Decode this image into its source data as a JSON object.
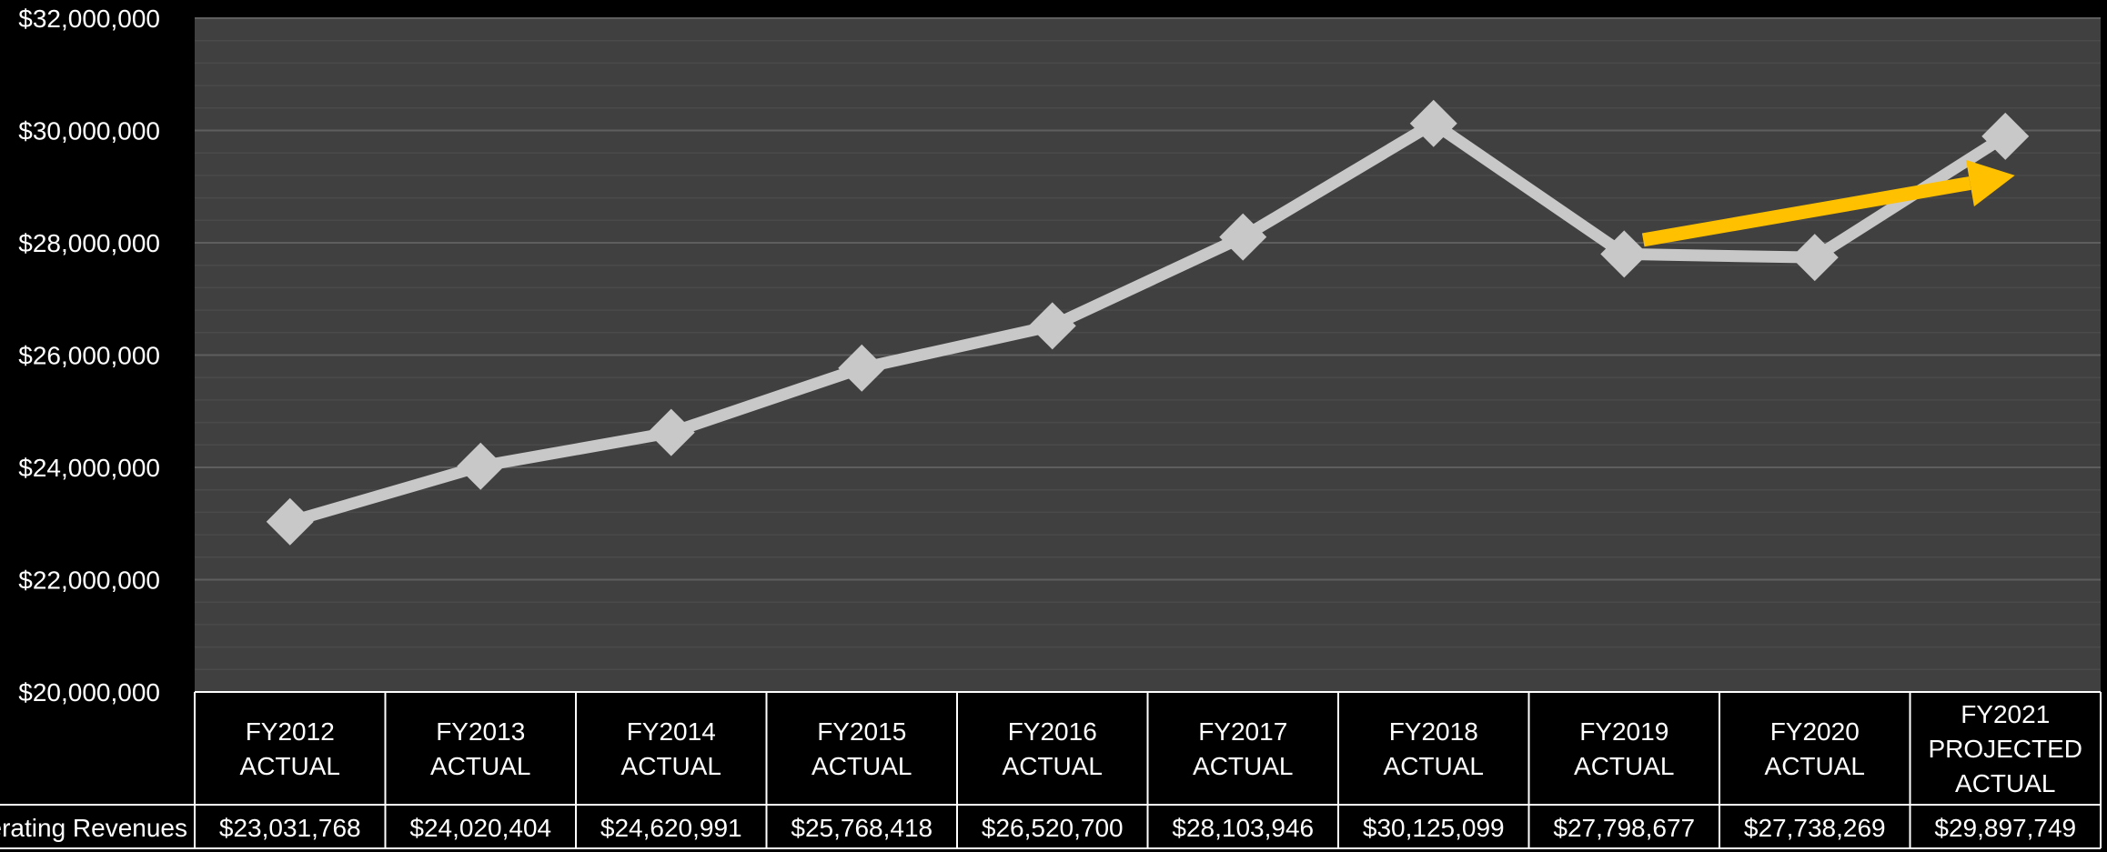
{
  "chart_data": {
    "type": "line",
    "categories": [
      "FY2012 ACTUAL",
      "FY2013 ACTUAL",
      "FY2014 ACTUAL",
      "FY2015 ACTUAL",
      "FY2016 ACTUAL",
      "FY2017 ACTUAL",
      "FY2018 ACTUAL",
      "FY2019 ACTUAL",
      "FY2020 ACTUAL",
      "FY2021 PROJECTED ACTUAL"
    ],
    "category_lines": [
      [
        "FY2012",
        "ACTUAL"
      ],
      [
        "FY2013",
        "ACTUAL"
      ],
      [
        "FY2014",
        "ACTUAL"
      ],
      [
        "FY2015",
        "ACTUAL"
      ],
      [
        "FY2016",
        "ACTUAL"
      ],
      [
        "FY2017",
        "ACTUAL"
      ],
      [
        "FY2018",
        "ACTUAL"
      ],
      [
        "FY2019",
        "ACTUAL"
      ],
      [
        "FY2020",
        "ACTUAL"
      ],
      [
        "FY2021",
        "PROJECTED",
        "ACTUAL"
      ]
    ],
    "series": [
      {
        "name": "Operating Revenues",
        "values": [
          23031768,
          24020404,
          24620991,
          25768418,
          26520700,
          28103946,
          30125099,
          27798677,
          27738269,
          29897749
        ],
        "color": "#c8c8c8",
        "marker": "diamond"
      }
    ],
    "data_table": {
      "row_label": "Operating Revenues",
      "values": [
        "$23,031,768",
        "$24,020,404",
        "$24,620,991",
        "$25,768,418",
        "$26,520,700",
        "$28,103,946",
        "$30,125,099",
        "$27,798,677",
        "$27,738,269",
        "$29,897,749"
      ]
    },
    "y_ticks": [
      "$20,000,000",
      "$22,000,000",
      "$24,000,000",
      "$26,000,000",
      "$28,000,000",
      "$30,000,000",
      "$32,000,000"
    ],
    "ylim": [
      20000000,
      32000000
    ],
    "y_major_step": 2000000,
    "y_minor_step": 400000,
    "grid": true,
    "title": "",
    "xlabel": "",
    "ylabel": "",
    "annotations": [
      {
        "type": "arrow",
        "color": "#ffc000",
        "from": {
          "x_index": 7.1,
          "y": 28050000
        },
        "to": {
          "x_index": 9.05,
          "y": 29200000
        }
      }
    ],
    "colors": {
      "background": "#000000",
      "plot_area": "#404040",
      "gridline": "#5e5e5e",
      "gridline_minor": "#4a4a4a",
      "line": "#c8c8c8",
      "arrow": "#ffc000",
      "text": "#ffffff"
    }
  }
}
